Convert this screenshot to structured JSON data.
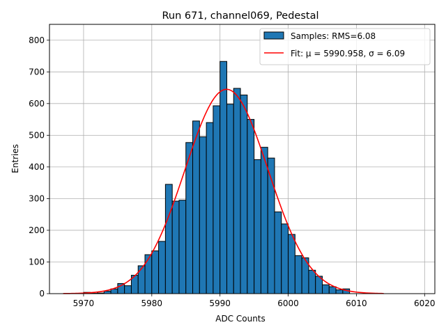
{
  "chart_data": {
    "type": "bar",
    "title": "Run 671, channel069, Pedestal",
    "xlabel": "ADC Counts",
    "ylabel": "Entries",
    "xlim": [
      5965,
      6021.5
    ],
    "ylim": [
      0,
      850
    ],
    "xticks": [
      5970,
      5980,
      5990,
      6000,
      6010,
      6020
    ],
    "yticks": [
      0,
      100,
      200,
      300,
      400,
      500,
      600,
      700,
      800
    ],
    "grid": true,
    "legend_position": "top-right",
    "bar_color": "#1f77b4",
    "fit_color": "#ff0000",
    "bin_width": 1,
    "bin_left_edges": [
      5970,
      5971,
      5972,
      5973,
      5974,
      5975,
      5976,
      5977,
      5978,
      5979,
      5980,
      5981,
      5982,
      5983,
      5984,
      5985,
      5986,
      5987,
      5988,
      5989,
      5990,
      5991,
      5992,
      5993,
      5994,
      5995,
      5996,
      5997,
      5998,
      5999,
      6000,
      6001,
      6002,
      6003,
      6004,
      6005,
      6006,
      6007,
      6008,
      6009
    ],
    "bin_counts": [
      4,
      1,
      2,
      8,
      15,
      32,
      25,
      58,
      88,
      123,
      135,
      165,
      345,
      292,
      295,
      477,
      545,
      495,
      540,
      593,
      733,
      598,
      648,
      627,
      550,
      423,
      462,
      428,
      258,
      220,
      187,
      120,
      113,
      74,
      55,
      28,
      22,
      12,
      15,
      0
    ],
    "series": [
      {
        "name": "Samples: RMS=6.08",
        "kind": "histogram"
      },
      {
        "name": "Fit: μ = 5990.958, σ = 6.09",
        "kind": "gaussian",
        "mu": 5990.958,
        "sigma": 6.09,
        "amplitude": 645,
        "x_range": [
          5967,
          6014
        ]
      }
    ]
  }
}
